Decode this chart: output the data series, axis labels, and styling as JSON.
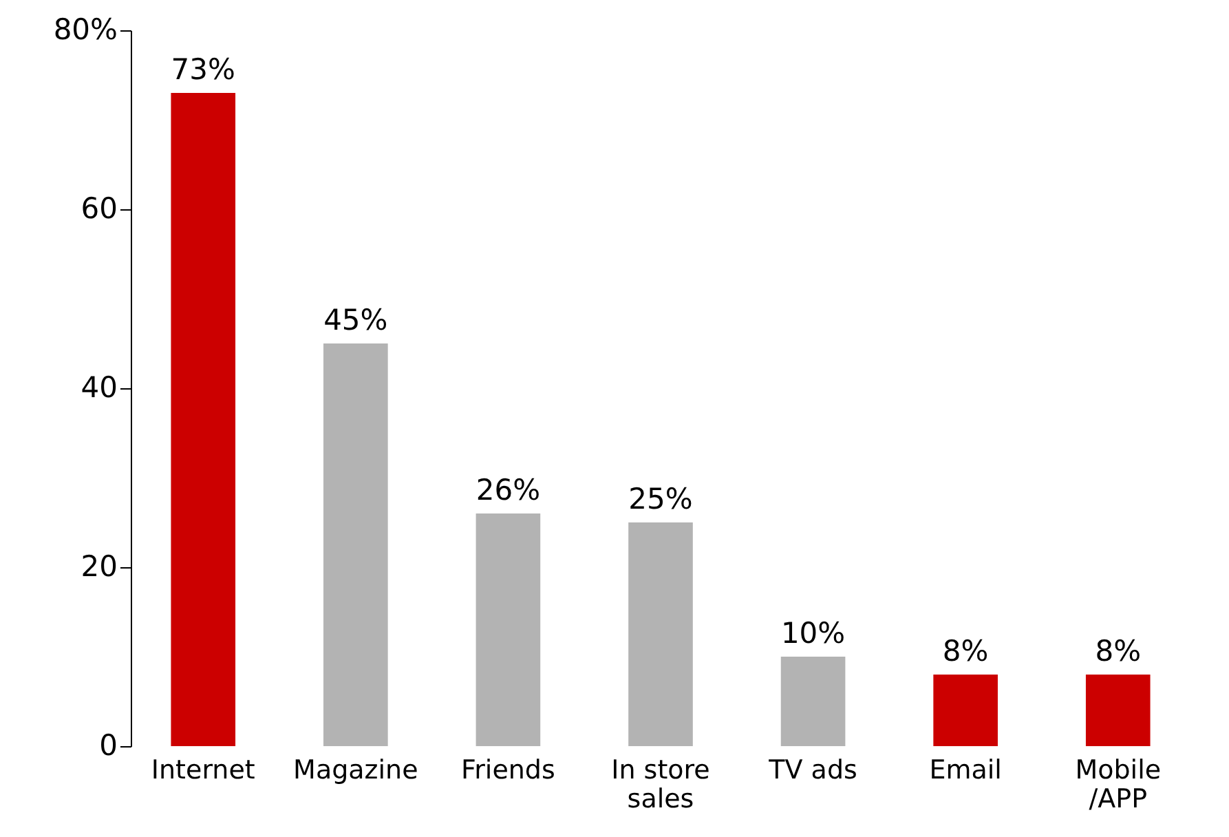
{
  "chart_data": {
    "type": "bar",
    "categories": [
      "Internet",
      "Magazine",
      "Friends",
      "In store\nsales",
      "TV ads",
      "Email",
      "Mobile\n/APP"
    ],
    "values": [
      73,
      45,
      26,
      25,
      10,
      8,
      8
    ],
    "colors": [
      "#cc0000",
      "#b3b3b3",
      "#b3b3b3",
      "#b3b3b3",
      "#b3b3b3",
      "#cc0000",
      "#cc0000"
    ],
    "value_labels": [
      "73%",
      "45%",
      "26%",
      "25%",
      "10%",
      "8%",
      "8%"
    ],
    "ylim": [
      0,
      80
    ],
    "yticks": [
      0,
      20,
      40,
      60,
      {
        "value": 80,
        "label": "80%"
      }
    ],
    "grid": false
  }
}
